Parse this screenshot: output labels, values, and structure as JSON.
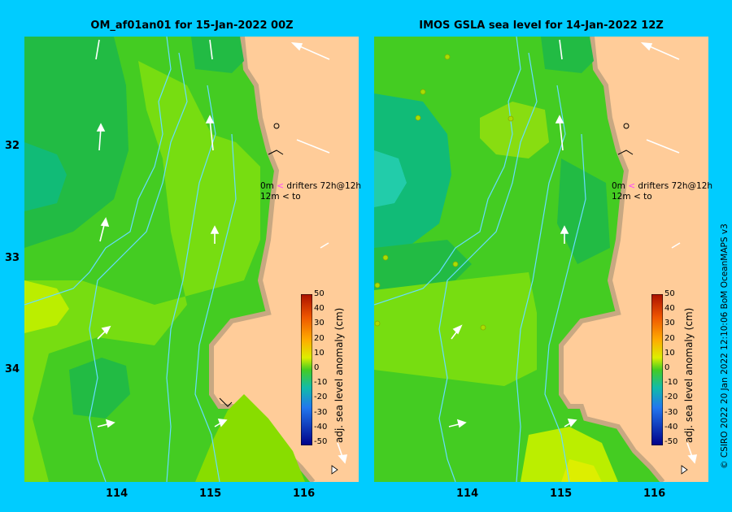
{
  "left_panel": {
    "title": "OM_af01an01 for 15-Jan-2022 00Z",
    "legend": {
      "line1_depth": "0m",
      "line1_text": "drifters 72h@12h",
      "line2_depth": "12m",
      "line2_text": "to"
    }
  },
  "right_panel": {
    "title": "IMOS GSLA sea level  for 14-Jan-2022 12Z",
    "legend": {
      "line1_depth": "0m",
      "line1_text": "drifters 72h@12h",
      "line2_depth": "12m",
      "line2_text": "to"
    }
  },
  "lat_ticks": [
    "32",
    "33",
    "34"
  ],
  "lon_ticks": [
    "114",
    "115",
    "116"
  ],
  "colorbar": {
    "label": "adj. sea level anomaly (cm)",
    "ticks": [
      "50",
      "40",
      "30",
      "20",
      "10",
      "0",
      "-10",
      "-20",
      "-30",
      "-40",
      "-50"
    ]
  },
  "credit": "© CSIRO 2022   20 Jan 2022 12:10:06 BoM OceanMAPS v3",
  "colors": {
    "background": "#00ccff",
    "land": "#ffcc99",
    "coast": "#c8a882",
    "ocean_green": "#44cc22",
    "ocean_yellow": "#99dd00",
    "bathymetry": "#66ddff",
    "drifter_pink": "#ff44ff"
  }
}
